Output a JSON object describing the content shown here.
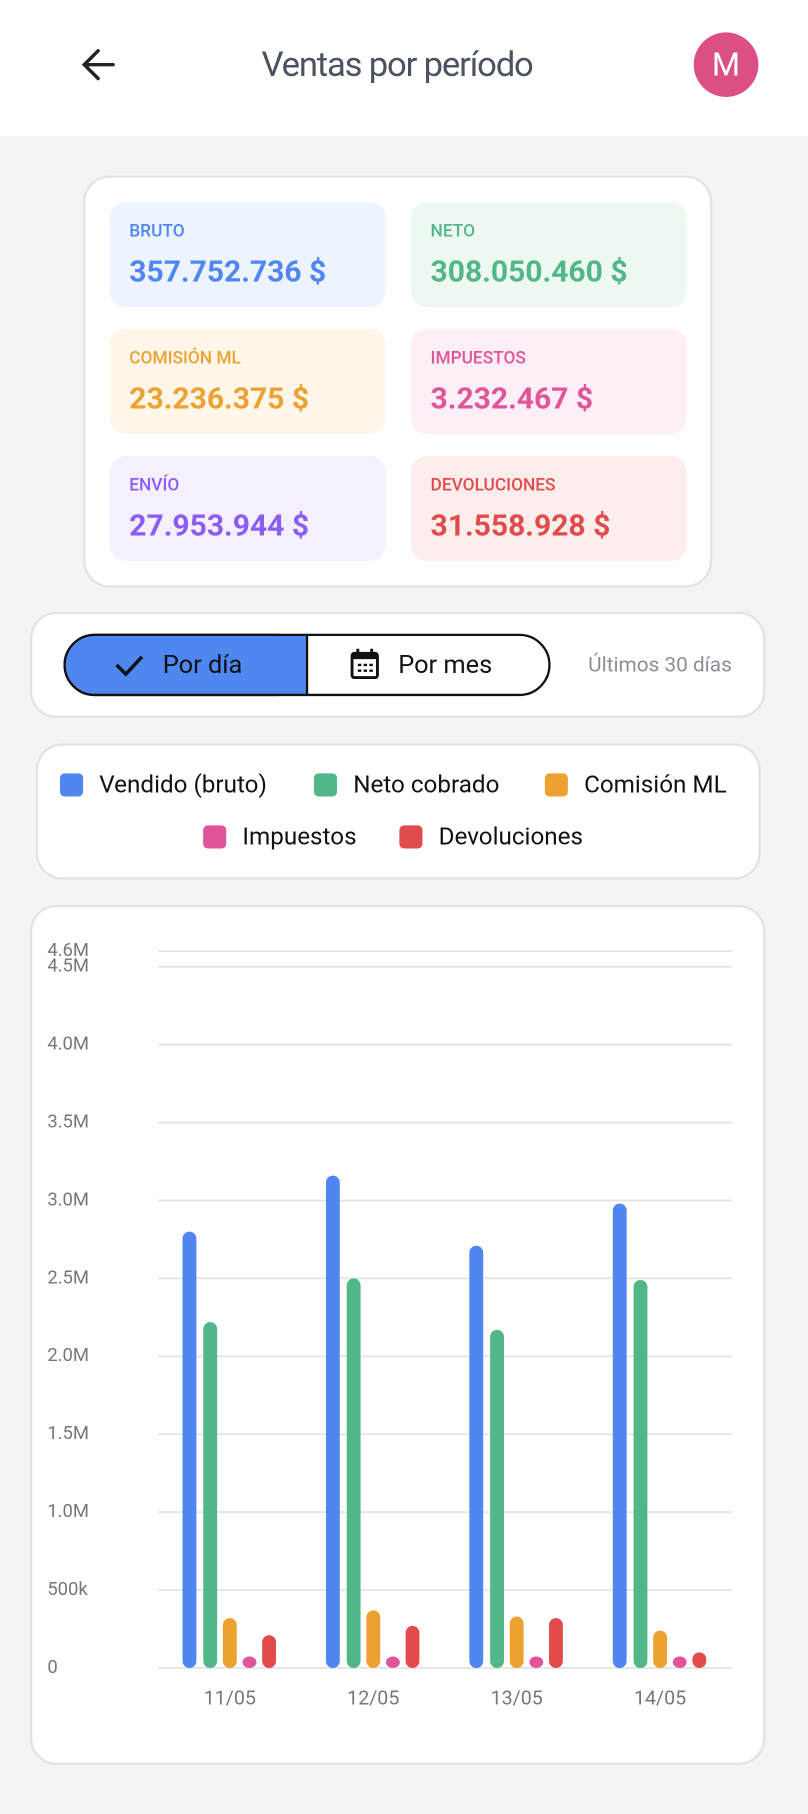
{
  "header": {
    "title": "Ventas por período",
    "avatar": "M"
  },
  "summary": [
    {
      "label": "BRUTO",
      "value": "357.752.736 $"
    },
    {
      "label": "NETO",
      "value": "308.050.460 $"
    },
    {
      "label": "COMISIÓN ML",
      "value": "23.236.375 $"
    },
    {
      "label": "IMPUESTOS",
      "value": "3.232.467 $"
    },
    {
      "label": "ENVÍO",
      "value": "27.953.944 $"
    },
    {
      "label": "DEVOLUCIONES",
      "value": "31.558.928 $"
    }
  ],
  "filters": {
    "by_day": "Por día",
    "by_month": "Por mes",
    "range": "Últimos 30 días"
  },
  "chart_data": {
    "type": "bar",
    "categories": [
      "11/05",
      "12/05",
      "13/05",
      "14/05"
    ],
    "series": [
      {
        "name": "Vendido (bruto)",
        "color": "#4f86f0",
        "values": [
          2800000,
          3160000,
          2710000,
          2980000
        ]
      },
      {
        "name": "Neto cobrado",
        "color": "#52b788",
        "values": [
          2220000,
          2500000,
          2170000,
          2490000
        ]
      },
      {
        "name": "Comisión ML",
        "color": "#eda131",
        "values": [
          320000,
          370000,
          330000,
          240000
        ]
      },
      {
        "name": "Impuestos",
        "color": "#e0559a",
        "values": [
          70000,
          70000,
          70000,
          70000
        ]
      },
      {
        "name": "Devoluciones",
        "color": "#e14b4b",
        "values": [
          210000,
          270000,
          320000,
          100000
        ]
      }
    ],
    "ylim": [
      0,
      4600000
    ],
    "yticks": [
      0,
      {
        "value": 500000,
        "label": "500k"
      },
      {
        "value": 1000000,
        "label": "1.0M"
      },
      {
        "value": 1500000,
        "label": "1.5M"
      },
      {
        "value": 2000000,
        "label": "2.0M"
      },
      {
        "value": 2500000,
        "label": "2.5M"
      },
      {
        "value": 3000000,
        "label": "3.0M"
      },
      {
        "value": 3500000,
        "label": "3.5M"
      },
      {
        "value": 4000000,
        "label": "4.0M"
      },
      {
        "value": 4500000,
        "label": "4.5M"
      },
      {
        "value": 4600000,
        "label": "4.6M"
      }
    ],
    "grid": true
  }
}
